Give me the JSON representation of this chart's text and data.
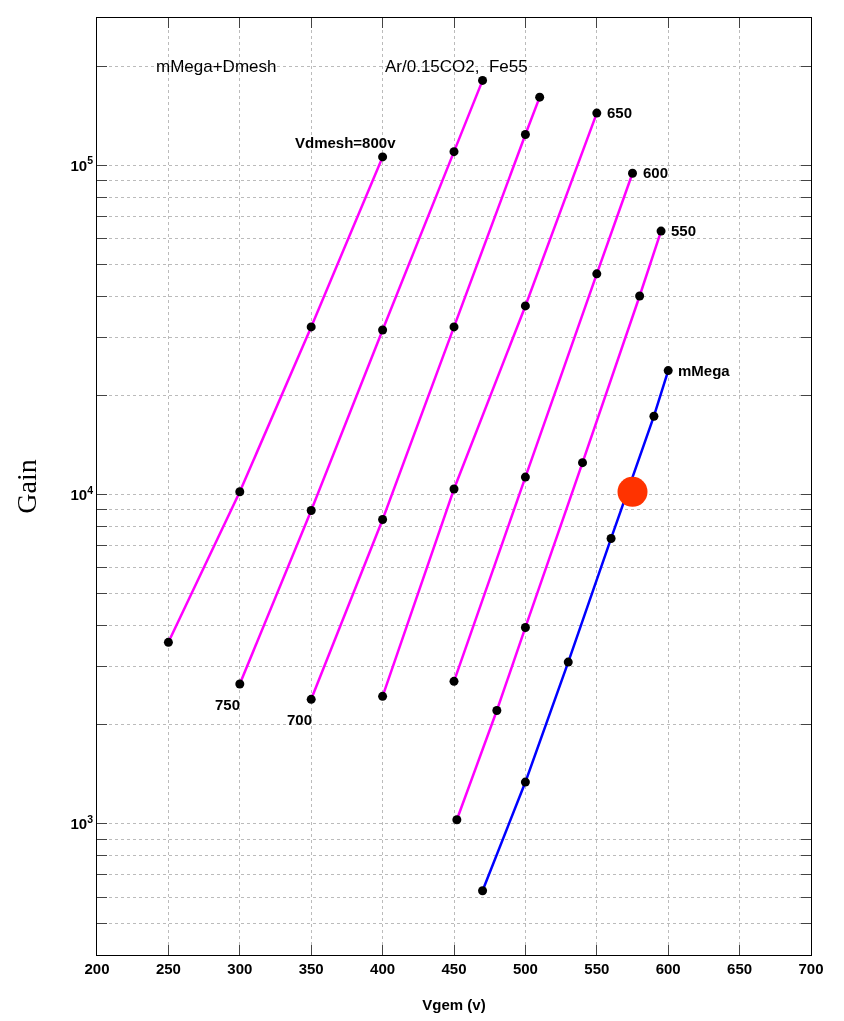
{
  "chart_data": {
    "type": "line",
    "title": "mMega+Dmesh",
    "subtitle": "Ar/0.15CO2,  Fe55",
    "xlabel": "Vgem (v)",
    "ylabel": "Gain",
    "log": "y",
    "grid": true,
    "marker": "circle",
    "line_style": "solid",
    "xlim": [
      200,
      700
    ],
    "xticks": [
      200,
      250,
      300,
      350,
      400,
      450,
      500,
      550,
      600,
      650,
      700
    ],
    "ylim": [
      400,
      280000
    ],
    "yticks": [
      {
        "value": 500,
        "label": null
      },
      {
        "value": 600,
        "label": null
      },
      {
        "value": 700,
        "label": null
      },
      {
        "value": 800,
        "label": null
      },
      {
        "value": 900,
        "label": null
      },
      {
        "value": 1000,
        "label": "10$^{3}$"
      },
      {
        "value": 2000,
        "label": null
      },
      {
        "value": 3000,
        "label": null
      },
      {
        "value": 4000,
        "label": null
      },
      {
        "value": 5000,
        "label": null
      },
      {
        "value": 6000,
        "label": null
      },
      {
        "value": 7000,
        "label": null
      },
      {
        "value": 8000,
        "label": null
      },
      {
        "value": 9000,
        "label": null
      },
      {
        "value": 10000,
        "label": "10$^{4}$"
      },
      {
        "value": 20000,
        "label": null
      },
      {
        "value": 30000,
        "label": null
      },
      {
        "value": 40000,
        "label": null
      },
      {
        "value": 50000,
        "label": null
      },
      {
        "value": 60000,
        "label": null
      },
      {
        "value": 70000,
        "label": null
      },
      {
        "value": 80000,
        "label": null
      },
      {
        "value": 90000,
        "label": null
      },
      {
        "value": 100000,
        "label": "10$^{5}$"
      },
      {
        "value": 200000,
        "label": null
      }
    ],
    "series": [
      {
        "color": "#ff00ff",
        "x": [
          250,
          300,
          350,
          400
        ],
        "values": [
          3560,
          10200,
          32300,
          106000
        ]
      },
      {
        "color": "#ff00ff",
        "x": [
          300,
          350,
          400,
          450,
          470
        ],
        "values": [
          2660,
          8950,
          31600,
          110000,
          181000
        ]
      },
      {
        "color": "#ff00ff",
        "x": [
          350,
          400,
          450,
          500,
          510
        ],
        "values": [
          2390,
          8400,
          32300,
          124000,
          161000
        ]
      },
      {
        "color": "#ff00ff",
        "x": [
          400,
          450,
          500,
          550
        ],
        "values": [
          2440,
          10400,
          37400,
          144000
        ]
      },
      {
        "color": "#ff00ff",
        "x": [
          450,
          500,
          550,
          575
        ],
        "values": [
          2710,
          11300,
          46800,
          94600
        ]
      },
      {
        "color": "#ff00ff",
        "x": [
          452,
          480,
          500,
          540,
          580,
          595
        ],
        "values": [
          1030,
          2210,
          3950,
          12500,
          40100,
          63100
        ]
      },
      {
        "color": "#0000ff",
        "x": [
          470,
          500,
          530,
          560,
          590,
          600
        ],
        "values": [
          627,
          1340,
          3100,
          7360,
          17300,
          23800
        ]
      },
      {
        "type": "scatter",
        "color": "#ff3300",
        "x": [
          575
        ],
        "values": [
          10200
        ]
      }
    ],
    "annotations": [
      {
        "text": "Vdmesh=800v",
        "x": 400,
        "y": 106000
      },
      {
        "text": "750",
        "x": 300,
        "y": 2660
      },
      {
        "text": "700",
        "x": 350,
        "y": 2390
      },
      {
        "text": "650",
        "x": 550,
        "y": 144000
      },
      {
        "text": "600",
        "x": 575,
        "y": 94600
      },
      {
        "text": "550",
        "x": 595,
        "y": 63100
      },
      {
        "text": "mMega",
        "x": 600,
        "y": 23800
      }
    ]
  }
}
